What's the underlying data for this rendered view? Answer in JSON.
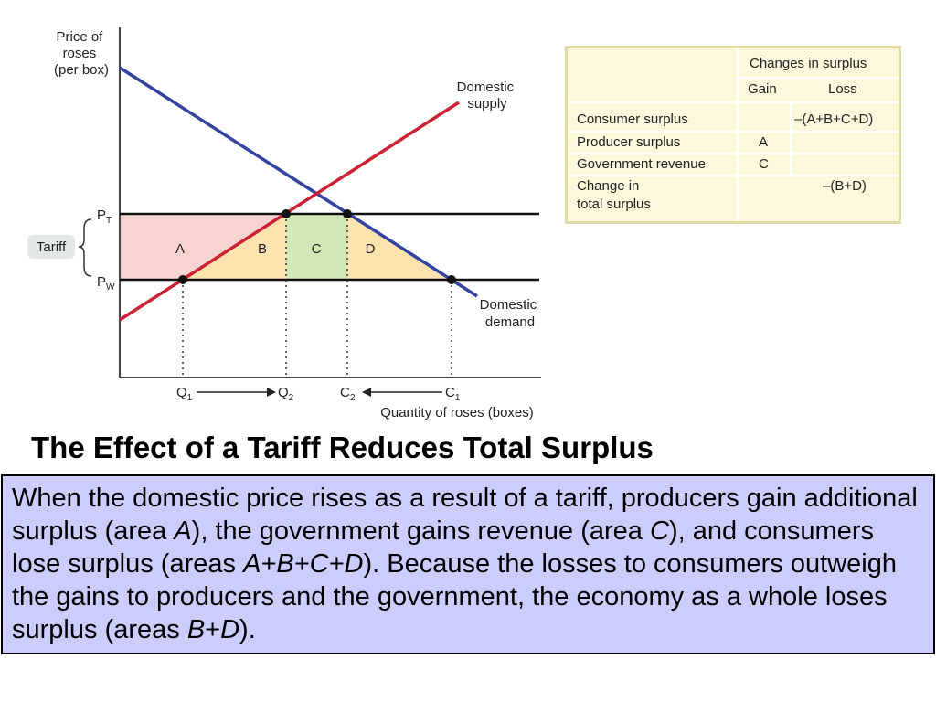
{
  "diagram": {
    "y_axis_label": [
      "Price of",
      "roses",
      "(per box)"
    ],
    "x_axis_label": "Quantity of roses (boxes)",
    "supply_label": [
      "Domestic",
      "supply"
    ],
    "demand_label": [
      "Domestic",
      "demand"
    ],
    "tariff_label": "Tariff",
    "price_tariff": {
      "base": "P",
      "sub": "T"
    },
    "price_world": {
      "base": "P",
      "sub": "W"
    },
    "areas": {
      "a": "A",
      "b": "B",
      "c": "C",
      "d": "D"
    },
    "quantities": {
      "q1": {
        "base": "Q",
        "sub": "1"
      },
      "q2": {
        "base": "Q",
        "sub": "2"
      },
      "c2": {
        "base": "C",
        "sub": "2"
      },
      "c1": {
        "base": "C",
        "sub": "1"
      }
    },
    "colors": {
      "supply_line": "#cc2233",
      "demand_line": "#3344a0",
      "area_a": "#f7d3d2",
      "area_b_d": "#fde3b0",
      "area_c": "#d3e9b5",
      "tariff_badge": "#e3e7e7"
    }
  },
  "table": {
    "header": "Changes in surplus",
    "col_gain": "Gain",
    "col_loss": "Loss",
    "rows": [
      {
        "label": "Consumer surplus",
        "gain": "",
        "loss": "–(A+B+C+D)"
      },
      {
        "label": "Producer surplus",
        "gain": "A",
        "loss": ""
      },
      {
        "label": "Government revenue",
        "gain": "C",
        "loss": ""
      },
      {
        "label": [
          "Change in",
          "total surplus"
        ],
        "gain": "",
        "loss": "–(B+D)"
      }
    ]
  },
  "title": "The Effect of a Tariff Reduces Total Surplus",
  "description": {
    "p1": "When the domestic price rises as a result of a tariff, producers gain additional surplus (area ",
    "a": "A",
    "p2": "), the government gains revenue (area ",
    "c": "C",
    "p3": "), and consumers lose surplus (areas ",
    "abcd": "A+B+C+D",
    "p4": "). Because the losses to consumers outweigh the gains to producers and the government, the economy as a whole loses surplus (areas ",
    "b": "B",
    "plus": "+",
    "d": "D",
    "p5": ")."
  }
}
